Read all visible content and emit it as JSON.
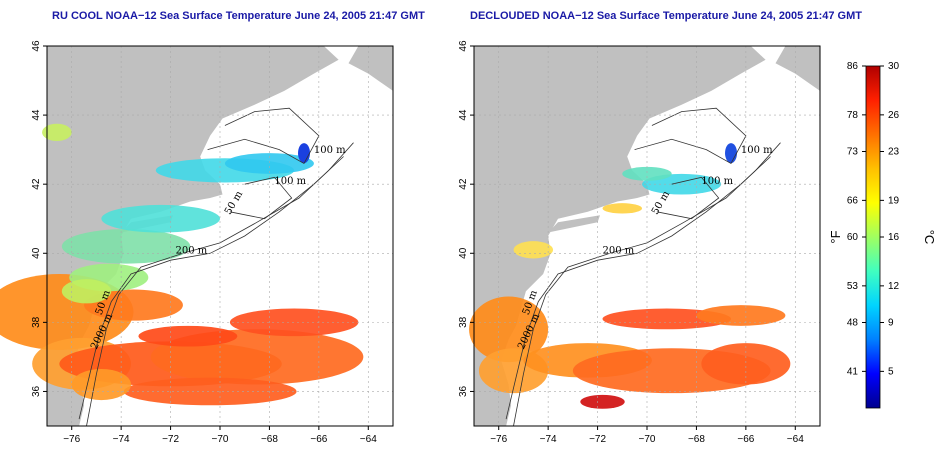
{
  "panels": [
    {
      "title": "RU COOL NOAA−12 Sea Surface Temperature June 24, 2005 21:47 GMT"
    },
    {
      "title": "DECLOUDED NOAA−12 Sea Surface Temperature June 24, 2005 21:47 GMT"
    }
  ],
  "contour_labels": [
    "100 m",
    "100 m",
    "50 m",
    "200 m",
    "50 m",
    "2000 m"
  ],
  "colorbar": {
    "fahrenheit_label": "°F",
    "celsius_label": "°C",
    "fahrenheit_ticks": [
      "86",
      "78",
      "73",
      "66",
      "60",
      "53",
      "48",
      "41"
    ],
    "celsius_ticks": [
      "30",
      "26",
      "23",
      "19",
      "16",
      "12",
      "9",
      "5"
    ],
    "celsius_values": [
      30,
      26,
      23,
      19,
      16,
      12,
      9,
      5
    ],
    "range_c": [
      2,
      30
    ],
    "colors": [
      "#00008f",
      "#0000ff",
      "#0080ff",
      "#00d4ff",
      "#40ffc0",
      "#a0ff60",
      "#ffff00",
      "#ffc000",
      "#ff7000",
      "#ff2000",
      "#b00000"
    ]
  },
  "chart_data": [
    {
      "type": "heatmap",
      "title": "RU COOL NOAA−12 Sea Surface Temperature June 24, 2005 21:47 GMT",
      "x_ticks": [
        "−76",
        "−74",
        "−72",
        "−70",
        "−68",
        "−66",
        "−64"
      ],
      "y_ticks": [
        "36",
        "38",
        "40",
        "42",
        "44",
        "46"
      ],
      "xlim": [
        -77,
        -63
      ],
      "ylim": [
        35,
        46
      ],
      "grid": true
    },
    {
      "type": "heatmap",
      "title": "DECLOUDED NOAA−12 Sea Surface Temperature June 24, 2005 21:47 GMT",
      "x_ticks": [
        "−76",
        "−74",
        "−72",
        "−70",
        "−68",
        "−66",
        "−64"
      ],
      "y_ticks": [
        "36",
        "38",
        "40",
        "42",
        "44",
        "46"
      ],
      "xlim": [
        -77,
        -63
      ],
      "ylim": [
        35,
        46
      ],
      "grid": true
    }
  ]
}
